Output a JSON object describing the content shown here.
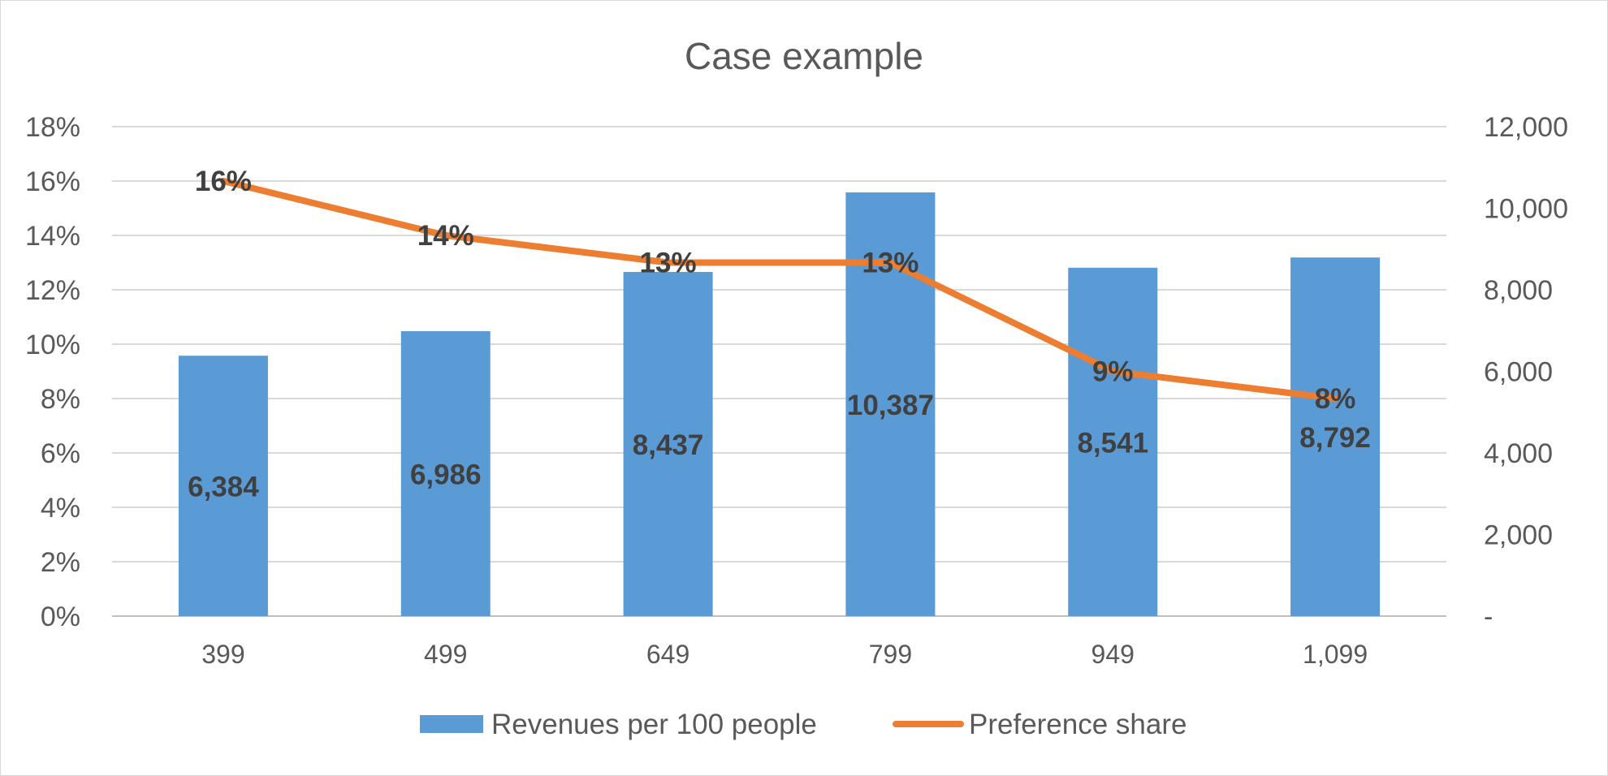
{
  "chart_data": {
    "type": "bar",
    "title": "Case example",
    "categories": [
      "399",
      "499",
      "649",
      "799",
      "949",
      "1,099"
    ],
    "series": [
      {
        "name": "Revenues per 100 people",
        "type": "bar",
        "axis": "right",
        "color": "#5b9bd5",
        "values": [
          6384,
          6986,
          8437,
          10387,
          8541,
          8792
        ],
        "value_labels": [
          "6,384",
          "6,986",
          "8,437",
          "10,387",
          "8,541",
          "8,792"
        ]
      },
      {
        "name": "Preference share",
        "type": "line",
        "axis": "left",
        "color": "#ed7d31",
        "values": [
          0.16,
          0.14,
          0.13,
          0.13,
          0.09,
          0.08
        ],
        "value_labels": [
          "16%",
          "14%",
          "13%",
          "13%",
          "9%",
          "8%"
        ]
      }
    ],
    "y_left": {
      "ylim": [
        0,
        0.18
      ],
      "ticks": [
        0,
        0.02,
        0.04,
        0.06,
        0.08,
        0.1,
        0.12,
        0.14,
        0.16,
        0.18
      ],
      "tick_labels": [
        "0%",
        "2%",
        "4%",
        "6%",
        "8%",
        "10%",
        "12%",
        "14%",
        "16%",
        "18%"
      ]
    },
    "y_right": {
      "ylim": [
        0,
        12000
      ],
      "ticks": [
        0,
        2000,
        4000,
        6000,
        8000,
        10000,
        12000
      ],
      "tick_labels": [
        "-",
        "2,000",
        "4,000",
        "6,000",
        "8,000",
        "10,000",
        "12,000"
      ]
    },
    "grid": true,
    "legend_position": "bottom"
  }
}
